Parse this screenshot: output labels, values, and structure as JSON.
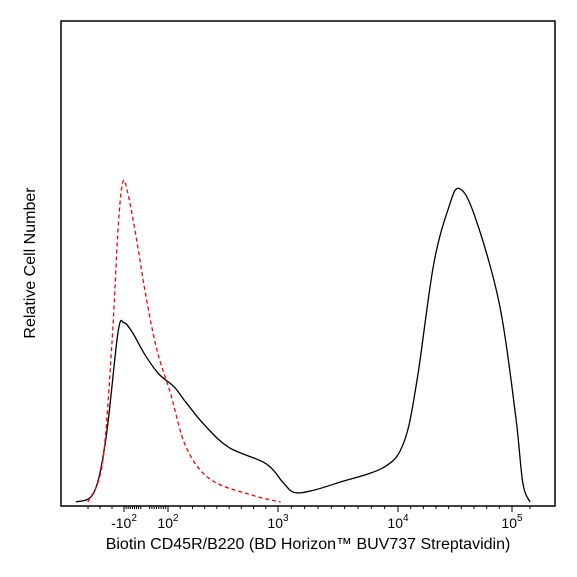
{
  "chart_data": {
    "type": "line",
    "xlabel": "Biotin CD45R/B220 (BD Horizon™ BUV737 Streptavidin)",
    "ylabel": "Relative Cell Number",
    "xscale": "biexponential",
    "grid": false,
    "legend": "none",
    "x_ticks": [
      {
        "base": "-10",
        "exp": "2",
        "value": -100
      },
      {
        "base": "10",
        "exp": "2",
        "value": 100
      },
      {
        "base": "10",
        "exp": "3",
        "value": 1000
      },
      {
        "base": "10",
        "exp": "4",
        "value": 10000
      },
      {
        "base": "10",
        "exp": "5",
        "value": 100000
      }
    ],
    "ylim": [
      0,
      1
    ],
    "series": [
      {
        "color": "#000000",
        "style": "solid",
        "points": [
          [
            -500,
            0.0
          ],
          [
            -350,
            0.03
          ],
          [
            -250,
            0.2
          ],
          [
            -150,
            0.53
          ],
          [
            -100,
            0.56
          ],
          [
            -60,
            0.53
          ],
          [
            0,
            0.46
          ],
          [
            60,
            0.4
          ],
          [
            150,
            0.36
          ],
          [
            250,
            0.31
          ],
          [
            400,
            0.24
          ],
          [
            600,
            0.17
          ],
          [
            900,
            0.12
          ],
          [
            1400,
            0.06
          ],
          [
            2200,
            0.03
          ],
          [
            3500,
            0.035
          ],
          [
            5500,
            0.06
          ],
          [
            9000,
            0.11
          ],
          [
            15000,
            0.19
          ],
          [
            25000,
            0.38
          ],
          [
            38000,
            0.74
          ],
          [
            50000,
            0.92
          ],
          [
            58000,
            0.98
          ],
          [
            70000,
            0.9
          ],
          [
            90000,
            0.62
          ],
          [
            120000,
            0.27
          ],
          [
            160000,
            0.06
          ],
          [
            200000,
            0.0
          ]
        ]
      },
      {
        "color": "#ff0000",
        "style": "dashed",
        "points": [
          [
            -400,
            0.0
          ],
          [
            -280,
            0.12
          ],
          [
            -200,
            0.5
          ],
          [
            -150,
            0.85
          ],
          [
            -110,
            1.0
          ],
          [
            -80,
            0.96
          ],
          [
            -40,
            0.82
          ],
          [
            0,
            0.66
          ],
          [
            50,
            0.48
          ],
          [
            120,
            0.34
          ],
          [
            250,
            0.17
          ],
          [
            450,
            0.07
          ],
          [
            800,
            0.02
          ],
          [
            1200,
            0.0
          ]
        ]
      }
    ]
  }
}
